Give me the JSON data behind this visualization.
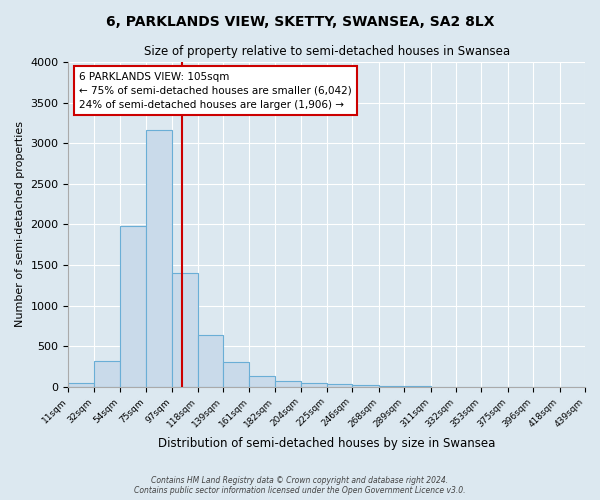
{
  "title": "6, PARKLANDS VIEW, SKETTY, SWANSEA, SA2 8LX",
  "subtitle": "Size of property relative to semi-detached houses in Swansea",
  "xlabel": "Distribution of semi-detached houses by size in Swansea",
  "ylabel": "Number of semi-detached properties",
  "bin_edges": [
    11,
    32,
    54,
    75,
    97,
    118,
    139,
    161,
    182,
    204,
    225,
    246,
    268,
    289,
    311,
    332,
    353,
    375,
    396,
    418,
    439
  ],
  "bar_heights": [
    50,
    320,
    1980,
    3160,
    1400,
    640,
    300,
    130,
    75,
    50,
    30,
    20,
    10,
    5,
    0,
    0,
    0,
    0,
    0,
    0
  ],
  "bar_color": "#c9daea",
  "bar_edge_color": "#6aaed6",
  "vline_x": 105,
  "vline_color": "#cc0000",
  "ylim": [
    0,
    4000
  ],
  "yticks": [
    0,
    500,
    1000,
    1500,
    2000,
    2500,
    3000,
    3500,
    4000
  ],
  "annotation_box_title": "6 PARKLANDS VIEW: 105sqm",
  "annotation_line1": "← 75% of semi-detached houses are smaller (6,042)",
  "annotation_line2": "24% of semi-detached houses are larger (1,906) →",
  "annotation_box_edgecolor": "#cc0000",
  "background_color": "#dce8f0",
  "grid_color": "#ffffff",
  "footer_line1": "Contains HM Land Registry data © Crown copyright and database right 2024.",
  "footer_line2": "Contains public sector information licensed under the Open Government Licence v3.0."
}
